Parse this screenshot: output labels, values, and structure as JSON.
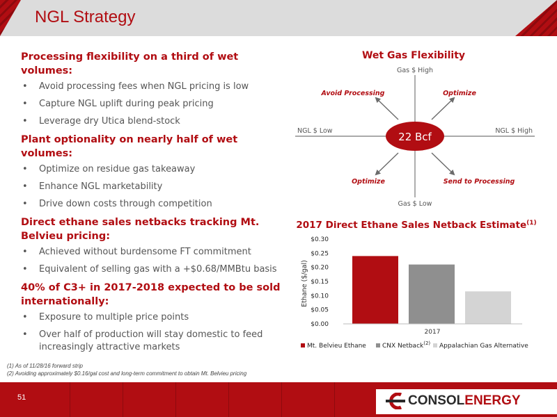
{
  "title": "NGL Strategy",
  "sections": [
    {
      "heading": "Processing flexibility on a third of wet volumes:",
      "bullets": [
        "Avoid processing fees when NGL pricing is low",
        "Capture NGL uplift during peak pricing",
        "Leverage dry Utica blend-stock"
      ]
    },
    {
      "heading": "Plant optionality on nearly half of wet volumes:",
      "bullets": [
        "Optimize on residue gas takeaway",
        "Enhance NGL marketability",
        "Drive down costs through competition"
      ]
    },
    {
      "heading": "Direct ethane sales netbacks tracking Mt. Belvieu pricing:",
      "bullets": [
        "Achieved without burdensome FT commitment",
        "Equivalent of selling gas with a +$0.68/MMBtu basis"
      ]
    },
    {
      "heading": "40% of C3+ in 2017-2018 expected to be sold internationally:",
      "bullets": [
        "Exposure to multiple price points",
        "Over half of production will stay domestic to feed increasingly attractive markets"
      ]
    }
  ],
  "diagram": {
    "title": "Wet Gas Flexibility",
    "center": "22 Bcf",
    "top": "Gas $ High",
    "bottom": "Gas $ Low",
    "left": "NGL $ Low",
    "right": "NGL $ High",
    "top_left": "Avoid Processing",
    "top_right": "Optimize",
    "bottom_left": "Optimize",
    "bottom_right": "Send to Processing",
    "accent": "#b10d12"
  },
  "chart_data": {
    "type": "bar",
    "title": "2017 Direct Ethane Sales Netback Estimate",
    "title_sup": "(1)",
    "categories": [
      "2017"
    ],
    "ylabel": "Ethane ($/gal)",
    "ylim": [
      0,
      0.3
    ],
    "yticks": [
      "$0.00",
      "$0.05",
      "$0.10",
      "$0.15",
      "$0.20",
      "$0.25",
      "$0.30"
    ],
    "series": [
      {
        "name": "Mt. Belvieu Ethane",
        "values": [
          0.24
        ],
        "color": "#b10d12"
      },
      {
        "name": "CNX Netback",
        "name_sup": "(2)",
        "values": [
          0.21
        ],
        "color": "#8f8f8f"
      },
      {
        "name": "Appalachian Gas Alternative",
        "values": [
          0.115
        ],
        "color": "#d4d4d4"
      }
    ],
    "legend": "bottom"
  },
  "footnotes": [
    "(1)   As of 11/28/16 forward strip",
    "(2)   Avoiding approximately $0.16/gal cost and long-term commitment to obtain Mt. Belvieu pricing"
  ],
  "page_number": "51",
  "logo": {
    "part1": "CONSOL",
    "part2": "ENERGY",
    "mark": "C"
  }
}
